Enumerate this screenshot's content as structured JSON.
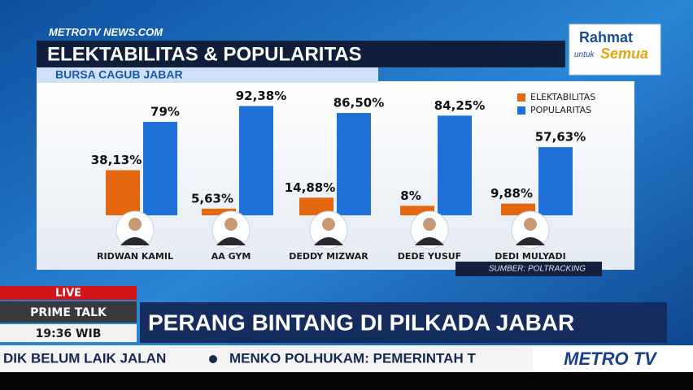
{
  "chart_data": {
    "type": "bar",
    "title": "ELEKTABILITAS & POPULARITAS",
    "subtitle": "BURSA CAGUB JABAR",
    "source": "SUMBER: POLTRACKING",
    "categories": [
      "RIDWAN KAMIL",
      "AA GYM",
      "DEDDY MIZWAR",
      "DEDE YUSUF",
      "DEDI MULYADI"
    ],
    "series": [
      {
        "name": "ELEKTABILITAS",
        "color": "#e3670f",
        "values": [
          38.13,
          5.63,
          14.88,
          8,
          9.88
        ],
        "value_labels": [
          "38,13%",
          "5,63%",
          "14,88%",
          "8%",
          "9,88%"
        ]
      },
      {
        "name": "POPULARITAS",
        "color": "#1f6fd8",
        "values": [
          79,
          92.38,
          86.5,
          84.25,
          57.63
        ],
        "value_labels": [
          "79%",
          "92,38%",
          "86,50%",
          "84,25%",
          "57,63%"
        ]
      }
    ]
  },
  "broadcast": {
    "channel_logo": "METROTV NEWS.COM",
    "slogan_top": "Rahmat",
    "slogan_mid": "untuk",
    "slogan_bottom": "Semua",
    "live": "LIVE",
    "program": "PRIME TALK",
    "time": "19:36 WIB",
    "headline": "PERANG BINTANG DI PILKADA JABAR",
    "ticker": [
      "DIK BELUM LAIK JALAN",
      "MENKO POLHUKAM: PEMERINTAH T"
    ],
    "logo": "METRO TV"
  }
}
